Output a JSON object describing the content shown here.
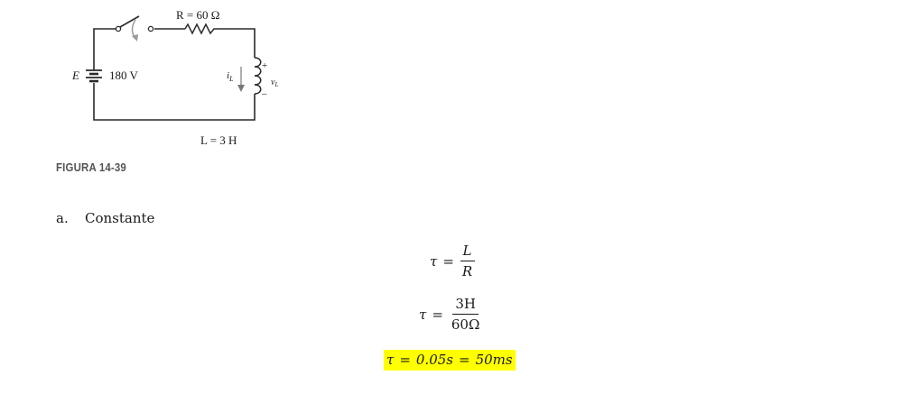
{
  "figure": {
    "resistor_label": "R = 60 Ω",
    "source_name": "E",
    "source_value": "180 V",
    "current_label": "i",
    "current_sub": "L",
    "voltage_label": "v",
    "voltage_sub": "L",
    "plus_sign": "+",
    "minus_sign": "–",
    "inductor_label": "L = 3 H",
    "caption": "FIGURA 14-39"
  },
  "item": {
    "marker": "a.",
    "text": "Constante"
  },
  "equations": {
    "eq1": {
      "lhs": "τ",
      "op": "=",
      "num": "L",
      "den": "R"
    },
    "eq2": {
      "lhs": "τ",
      "op": "=",
      "num": "3H",
      "den": "60Ω"
    },
    "eq3": {
      "lhs": "τ",
      "op1": "=",
      "mid": "0.05s",
      "op2": "=",
      "rhs": "50ms"
    }
  },
  "colors": {
    "highlight": "#ffff00",
    "wire": "#2a2a2a",
    "switch_arrow": "#9a9a9a"
  }
}
